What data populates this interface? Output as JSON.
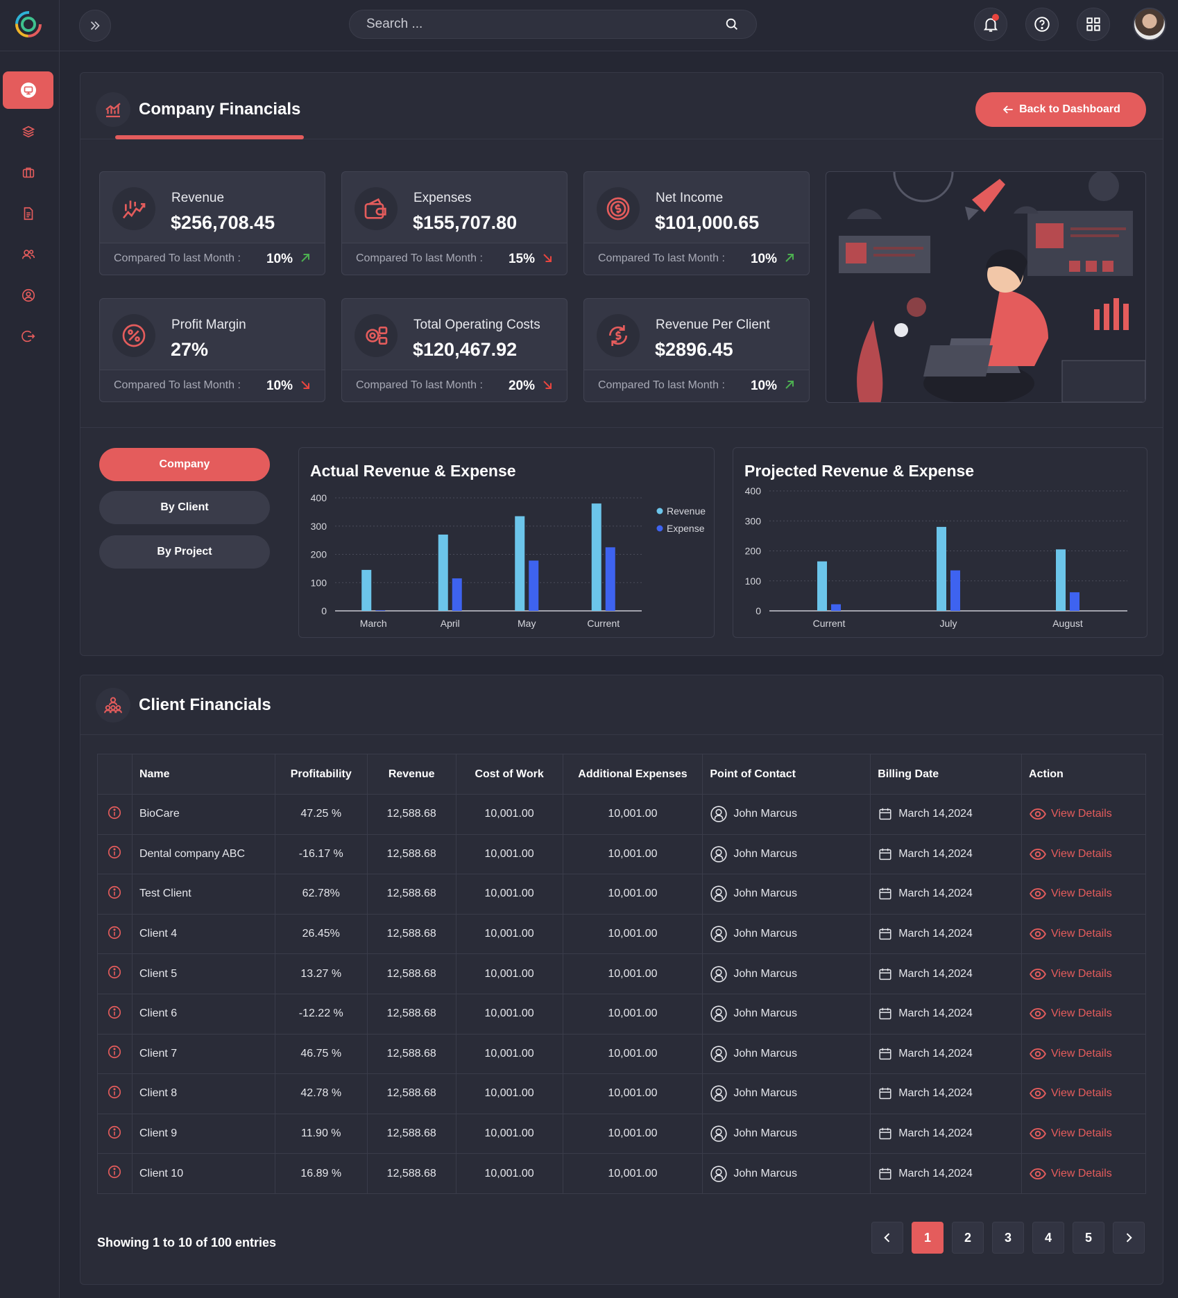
{
  "topbar": {
    "search_placeholder": "Search ..."
  },
  "sidebar": {
    "items": [
      {
        "name": "dashboard",
        "icon": "monitor-icon",
        "active": true
      },
      {
        "name": "layers",
        "icon": "layers-icon"
      },
      {
        "name": "projects",
        "icon": "briefcase-icon"
      },
      {
        "name": "documents",
        "icon": "document-icon"
      },
      {
        "name": "users",
        "icon": "users-icon"
      },
      {
        "name": "profile",
        "icon": "user-circle-icon"
      },
      {
        "name": "logout",
        "icon": "logout-icon"
      }
    ]
  },
  "company": {
    "title": "Company Financials",
    "back_label": "Back to Dashboard",
    "kpis": [
      {
        "label": "Revenue",
        "value": "$256,708.45",
        "compare": "Compared To last Month :",
        "pct": "10%",
        "trend": "up"
      },
      {
        "label": "Expenses",
        "value": "$155,707.80",
        "compare": "Compared To last Month :",
        "pct": "15%",
        "trend": "down"
      },
      {
        "label": "Net Income",
        "value": "$101,000.65",
        "compare": "Compared To last Month :",
        "pct": "10%",
        "trend": "up"
      },
      {
        "label": "Profit Margin",
        "value": "27%",
        "compare": "Compared To last Month :",
        "pct": "10%",
        "trend": "down"
      },
      {
        "label": "Total Operating Costs",
        "value": "$120,467.92",
        "compare": "Compared To last Month :",
        "pct": "20%",
        "trend": "down"
      },
      {
        "label": "Revenue Per Client",
        "value": "$2896.45",
        "compare": "Compared To last Month :",
        "pct": "10%",
        "trend": "up"
      }
    ],
    "segments": [
      "Company",
      "By Client",
      "By Project"
    ],
    "colors": {
      "accent": "#e45c5c",
      "revenue": "#6cc5ea",
      "expense": "#3e63f0",
      "up": "#4caf50",
      "down": "#e8453f"
    }
  },
  "chart_data": [
    {
      "type": "bar",
      "title": "Actual Revenue & Expense",
      "categories": [
        "March",
        "April",
        "May",
        "Current"
      ],
      "series": [
        {
          "name": "Revenue",
          "values": [
            145,
            270,
            335,
            380
          ]
        },
        {
          "name": "Expense",
          "values": [
            2,
            115,
            178,
            225
          ]
        }
      ],
      "ylim": [
        0,
        400
      ],
      "yticks": [
        0,
        100,
        200,
        300,
        400
      ],
      "legend": "top-right",
      "grid": true
    },
    {
      "type": "bar",
      "title": "Projected Revenue & Expense",
      "categories": [
        "Current",
        "July",
        "August"
      ],
      "series": [
        {
          "name": "Revenue",
          "values": [
            165,
            280,
            205
          ]
        },
        {
          "name": "Expense",
          "values": [
            22,
            135,
            62
          ]
        }
      ],
      "ylim": [
        0,
        400
      ],
      "yticks": [
        0,
        100,
        200,
        300,
        400
      ],
      "legend": "none",
      "grid": true
    }
  ],
  "clients": {
    "title": "Client Financials",
    "columns": [
      "Name",
      "Profitability",
      "Revenue",
      "Cost of Work",
      "Additional Expenses",
      "Point of Contact",
      "Billing Date",
      "Action"
    ],
    "rows": [
      {
        "name": "BioCare",
        "profit": "47.25 %",
        "trend": "pos",
        "revenue": "12,588.68",
        "cost": "10,001.00",
        "additional": "10,001.00",
        "contact": "John Marcus",
        "date": "March 14,2024",
        "action": "View Details"
      },
      {
        "name": "Dental company ABC",
        "profit": "-16.17 %",
        "trend": "neg",
        "revenue": "12,588.68",
        "cost": "10,001.00",
        "additional": "10,001.00",
        "contact": "John Marcus",
        "date": "March 14,2024",
        "action": "View Details"
      },
      {
        "name": "Test Client",
        "profit": "62.78%",
        "trend": "pos",
        "revenue": "12,588.68",
        "cost": "10,001.00",
        "additional": "10,001.00",
        "contact": "John Marcus",
        "date": "March 14,2024",
        "action": "View Details"
      },
      {
        "name": "Client 4",
        "profit": "26.45%",
        "trend": "pos",
        "revenue": "12,588.68",
        "cost": "10,001.00",
        "additional": "10,001.00",
        "contact": "John Marcus",
        "date": "March 14,2024",
        "action": "View Details"
      },
      {
        "name": "Client 5",
        "profit": "13.27 %",
        "trend": "pos",
        "revenue": "12,588.68",
        "cost": "10,001.00",
        "additional": "10,001.00",
        "contact": "John Marcus",
        "date": "March 14,2024",
        "action": "View Details"
      },
      {
        "name": "Client 6",
        "profit": "-12.22 %",
        "trend": "neg",
        "revenue": "12,588.68",
        "cost": "10,001.00",
        "additional": "10,001.00",
        "contact": "John Marcus",
        "date": "March 14,2024",
        "action": "View Details"
      },
      {
        "name": "Client 7",
        "profit": "46.75 %",
        "trend": "pos",
        "revenue": "12,588.68",
        "cost": "10,001.00",
        "additional": "10,001.00",
        "contact": "John Marcus",
        "date": "March 14,2024",
        "action": "View Details"
      },
      {
        "name": "Client 8",
        "profit": "42.78 %",
        "trend": "pos",
        "revenue": "12,588.68",
        "cost": "10,001.00",
        "additional": "10,001.00",
        "contact": "John Marcus",
        "date": "March 14,2024",
        "action": "View Details"
      },
      {
        "name": "Client 9",
        "profit": "11.90 %",
        "trend": "pos",
        "revenue": "12,588.68",
        "cost": "10,001.00",
        "additional": "10,001.00",
        "contact": "John Marcus",
        "date": "March 14,2024",
        "action": "View Details"
      },
      {
        "name": "Client 10",
        "profit": "16.89 %",
        "trend": "pos",
        "revenue": "12,588.68",
        "cost": "10,001.00",
        "additional": "10,001.00",
        "contact": "John Marcus",
        "date": "March 14,2024",
        "action": "View Details"
      }
    ],
    "entries_text": "Showing 1 to 10 of 100 entries",
    "pages": [
      "1",
      "2",
      "3",
      "4",
      "5"
    ],
    "current_page": "1"
  }
}
